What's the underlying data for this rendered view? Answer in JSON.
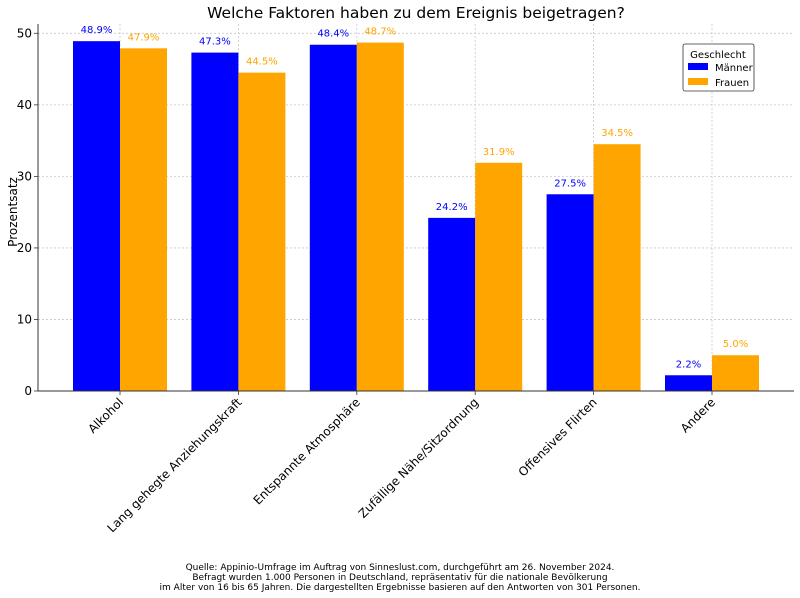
{
  "chart_data": {
    "type": "bar",
    "title": "Welche Faktoren haben zu dem Ereignis beigetragen?",
    "xlabel": "",
    "ylabel": "Prozentsatz",
    "ylim": [
      0,
      51.3
    ],
    "yticks": [
      0,
      10,
      20,
      30,
      40,
      50
    ],
    "grid": true,
    "categories": [
      "Alkohol",
      "Lang gehegte Anziehungskraft",
      "Entspannte Atmosphäre",
      "Zufällige Nähe/Sitzordnung",
      "Offensives Flirten",
      "Andere"
    ],
    "series": [
      {
        "name": "Männer",
        "color": "#0000ff",
        "values": [
          48.9,
          47.3,
          48.4,
          24.2,
          27.5,
          2.2
        ],
        "labels": [
          "48.9%",
          "47.3%",
          "48.4%",
          "24.2%",
          "27.5%",
          "2.2%"
        ]
      },
      {
        "name": "Frauen",
        "color": "#ffa500",
        "values": [
          47.9,
          44.5,
          48.7,
          31.9,
          34.5,
          5.0
        ],
        "labels": [
          "47.9%",
          "44.5%",
          "48.7%",
          "31.9%",
          "34.5%",
          "5.0%"
        ]
      }
    ],
    "legend": {
      "title": "Geschlecht",
      "placement": "top-right"
    }
  },
  "footer": [
    "Quelle: Appinio-Umfrage im Auftrag von Sinneslust.com, durchgeführt am 26. November 2024.",
    "Befragt wurden 1.000 Personen in Deutschland, repräsentativ für die nationale Bevölkerung",
    "im Alter von 16 bis 65 Jahren. Die dargestellten Ergebnisse basieren auf den Antworten von 301 Personen."
  ]
}
